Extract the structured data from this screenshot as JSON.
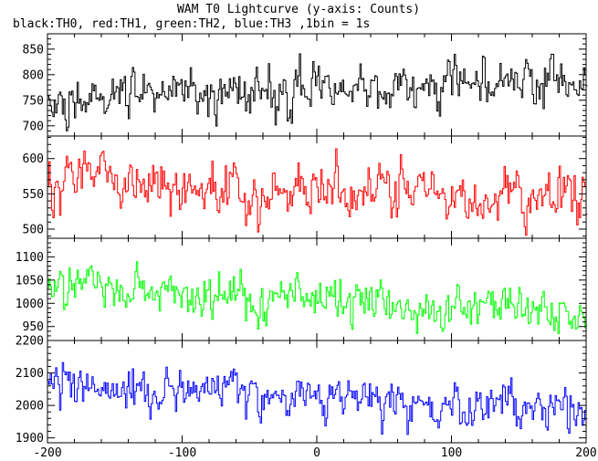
{
  "chart_data": {
    "type": "line",
    "title": "WAM T0 Lightcurve (y-axis: Counts)",
    "subtitle": "black:TH0, red:TH1, green:TH2, blue:TH3 ,1bin = 1s",
    "x_range": [
      -200,
      200
    ],
    "x_ticks": [
      -200,
      -100,
      0,
      100,
      200
    ],
    "bin_size_s": 1,
    "grid": false,
    "panels": [
      {
        "series": "TH0",
        "color": "#000000",
        "ylim": [
          680,
          880
        ],
        "yticks": [
          700,
          750,
          800,
          850
        ],
        "trend": [
          [
            -200,
            745
          ],
          [
            -150,
            760
          ],
          [
            -100,
            765
          ],
          [
            -50,
            772
          ],
          [
            0,
            775
          ],
          [
            50,
            780
          ],
          [
            100,
            785
          ],
          [
            150,
            790
          ],
          [
            200,
            790
          ]
        ],
        "noise": 27,
        "min": 690,
        "max": 875
      },
      {
        "series": "TH1",
        "color": "#ff0000",
        "ylim": [
          487,
          632
        ],
        "yticks": [
          500,
          550,
          600
        ],
        "trend": [
          [
            -200,
            565
          ],
          [
            -150,
            562
          ],
          [
            -100,
            560
          ],
          [
            -50,
            555
          ],
          [
            0,
            553
          ],
          [
            50,
            550
          ],
          [
            100,
            550
          ],
          [
            150,
            552
          ],
          [
            200,
            550
          ]
        ],
        "noise": 24,
        "min": 490,
        "max": 630
      },
      {
        "series": "TH2",
        "color": "#00ff00",
        "ylim": [
          920,
          1140
        ],
        "yticks": [
          950,
          1000,
          1050,
          1100
        ],
        "trend": [
          [
            -200,
            1040
          ],
          [
            -150,
            1030
          ],
          [
            -100,
            1025
          ],
          [
            -50,
            1010
          ],
          [
            0,
            1005
          ],
          [
            50,
            995
          ],
          [
            100,
            990
          ],
          [
            150,
            985
          ],
          [
            200,
            980
          ]
        ],
        "noise": 28,
        "min": 935,
        "max": 1135
      },
      {
        "series": "TH3",
        "color": "#0000ff",
        "ylim": [
          1885,
          2200
        ],
        "yticks": [
          1900,
          2000,
          2100,
          2200
        ],
        "trend": [
          [
            -200,
            2070
          ],
          [
            -150,
            2055
          ],
          [
            -100,
            2045
          ],
          [
            -50,
            2030
          ],
          [
            0,
            2020
          ],
          [
            50,
            2010
          ],
          [
            100,
            2005
          ],
          [
            150,
            2000
          ],
          [
            200,
            1995
          ]
        ],
        "noise": 42,
        "min": 1890,
        "max": 2200
      }
    ]
  }
}
